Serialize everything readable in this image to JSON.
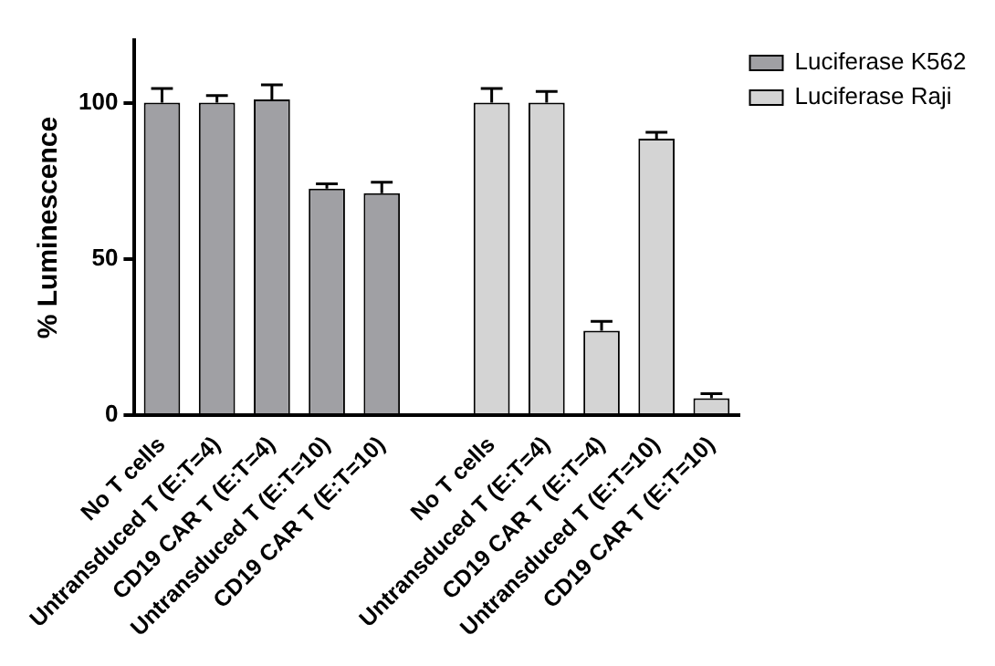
{
  "chart_data": {
    "type": "bar",
    "ylabel": "% Luminescence",
    "categories": [
      "No T cells",
      "Untransduced T (E:T=4)",
      "CD19 CAR T (E:T=4)",
      "Untransduced T (E:T=10)",
      "CD19 CAR T (E:T=10)",
      null,
      "No T cells",
      "Untransduced T (E:T=4)",
      "CD19 CAR T (E:T=4)",
      "Untransduced T (E:T=10)",
      "CD19 CAR T (E:T=10)"
    ],
    "series": [
      {
        "name": "Luciferase K562",
        "color": "#a0a0a4",
        "values": [
          100,
          100,
          101,
          72.5,
          71,
          null,
          null,
          null,
          null,
          null,
          null
        ],
        "errors": [
          [
            100,
            104.5
          ],
          [
            100,
            102.3
          ],
          [
            101,
            105.7
          ],
          [
            72.5,
            74
          ],
          [
            71,
            74.5
          ],
          null,
          null,
          null,
          null,
          null,
          null
        ]
      },
      {
        "name": "Luciferase Raji",
        "color": "#d4d4d4",
        "values": [
          null,
          null,
          null,
          null,
          null,
          null,
          100,
          100,
          27,
          88.5,
          5.4
        ],
        "errors": [
          null,
          null,
          null,
          null,
          null,
          null,
          [
            100,
            104.5
          ],
          [
            100,
            103.6
          ],
          [
            27,
            30
          ],
          [
            88.5,
            90.5
          ],
          [
            5.4,
            6.9
          ]
        ]
      }
    ],
    "ylim": [
      0,
      120
    ],
    "yticks": [
      0,
      50,
      100
    ],
    "grid": false,
    "legend": "top right"
  }
}
